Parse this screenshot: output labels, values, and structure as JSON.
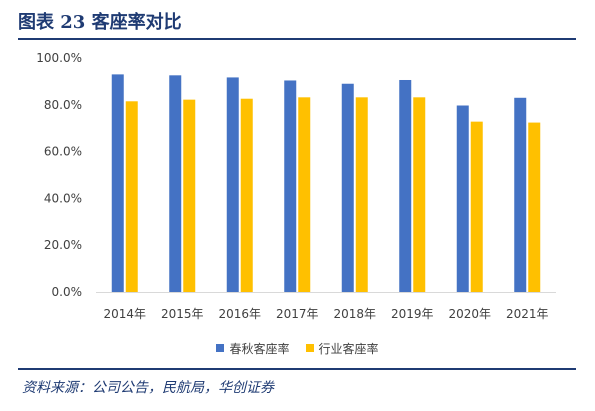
{
  "header": {
    "title": "图表 23 客座率对比"
  },
  "chart_data": {
    "type": "bar",
    "categories": [
      "2014年",
      "2015年",
      "2016年",
      "2017年",
      "2018年",
      "2019年",
      "2020年",
      "2021年"
    ],
    "series": [
      {
        "name": "春秋客座率",
        "color": "#4472C4",
        "values": [
          93.0,
          92.6,
          91.7,
          90.4,
          89.0,
          90.6,
          79.7,
          83.0
        ]
      },
      {
        "name": "行业客座率",
        "color": "#FFC000",
        "values": [
          81.5,
          82.2,
          82.6,
          83.2,
          83.2,
          83.2,
          72.8,
          72.4
        ]
      }
    ],
    "yticks": [
      "0.0%",
      "20.0%",
      "40.0%",
      "60.0%",
      "80.0%",
      "100.0%"
    ],
    "ylim": [
      0,
      100
    ],
    "legend_position": "bottom",
    "grid": false
  },
  "footer": {
    "source": "资料来源：公司公告，民航局，华创证券"
  }
}
